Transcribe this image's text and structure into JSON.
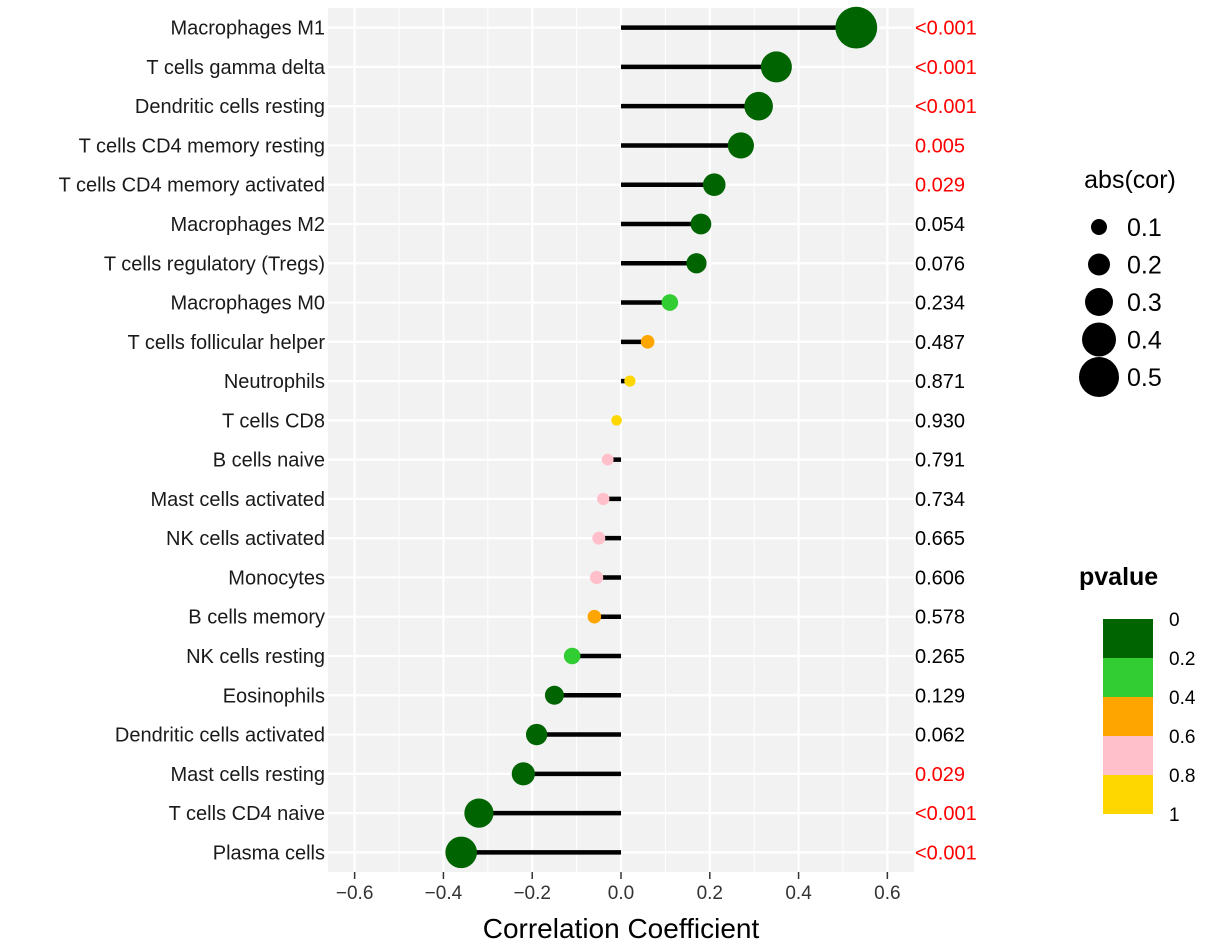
{
  "chart_data": {
    "type": "lollipop",
    "xlabel": "Correlation Coefficient",
    "xlim": [
      -0.66,
      0.66
    ],
    "xticks": [
      -0.6,
      -0.4,
      -0.2,
      0.0,
      0.2,
      0.4,
      0.6
    ],
    "xtick_labels": [
      "−0.6",
      "−0.4",
      "−0.2",
      "0.0",
      "0.2",
      "0.4",
      "0.6"
    ],
    "grid": true,
    "categories": [
      "Macrophages M1",
      "T cells gamma delta",
      "Dendritic cells resting",
      "T cells CD4 memory resting",
      "T cells CD4 memory activated",
      "Macrophages M2",
      "T cells regulatory (Tregs)",
      "Macrophages M0",
      "T cells follicular helper",
      "Neutrophils",
      "T cells CD8",
      "B cells naive",
      "Mast cells activated",
      "NK cells activated",
      "Monocytes",
      "B cells memory",
      "NK cells resting",
      "Eosinophils",
      "Dendritic cells activated",
      "Mast cells resting",
      "T cells CD4 naive",
      "Plasma cells"
    ],
    "cor": [
      0.53,
      0.35,
      0.31,
      0.27,
      0.21,
      0.18,
      0.17,
      0.11,
      0.06,
      0.02,
      -0.01,
      -0.03,
      -0.04,
      -0.05,
      -0.055,
      -0.06,
      -0.11,
      -0.15,
      -0.19,
      -0.22,
      -0.32,
      -0.36
    ],
    "pvalue": [
      0.0005,
      0.0005,
      0.0005,
      0.005,
      0.029,
      0.054,
      0.076,
      0.234,
      0.487,
      0.871,
      0.93,
      0.791,
      0.734,
      0.665,
      0.606,
      0.578,
      0.265,
      0.129,
      0.062,
      0.029,
      0.0005,
      0.0005
    ],
    "pvalue_labels": [
      "<0.001",
      "<0.001",
      "<0.001",
      "0.005",
      "0.029",
      "0.054",
      "0.076",
      "0.234",
      "0.487",
      "0.871",
      "0.930",
      "0.791",
      "0.734",
      "0.665",
      "0.606",
      "0.578",
      "0.265",
      "0.129",
      "0.062",
      "0.029",
      "<0.001",
      "<0.001"
    ],
    "pvalue_label_significant": [
      true,
      true,
      true,
      true,
      true,
      false,
      false,
      false,
      false,
      false,
      false,
      false,
      false,
      false,
      false,
      false,
      false,
      false,
      false,
      true,
      true,
      true
    ],
    "size_legend": {
      "title": "abs(cor)",
      "values": [
        0.1,
        0.2,
        0.3,
        0.4,
        0.5
      ],
      "labels": [
        "0.1",
        "0.2",
        "0.3",
        "0.4",
        "0.5"
      ]
    },
    "color_legend": {
      "title": "pvalue",
      "breaks": [
        0,
        0.2,
        0.4,
        0.6,
        0.8,
        1
      ],
      "labels": [
        "0",
        "0.2",
        "0.4",
        "0.6",
        "0.8",
        "1"
      ],
      "colors": [
        "#006400",
        "#32CD32",
        "#FFA500",
        "#FFC0CB",
        "#FFD700"
      ]
    },
    "colors": {
      "panel_bg": "#f2f2f2",
      "grid": "#ffffff",
      "stem": "#000000",
      "sig_text": "#FF0000",
      "nonsig_text": "#000000"
    }
  }
}
